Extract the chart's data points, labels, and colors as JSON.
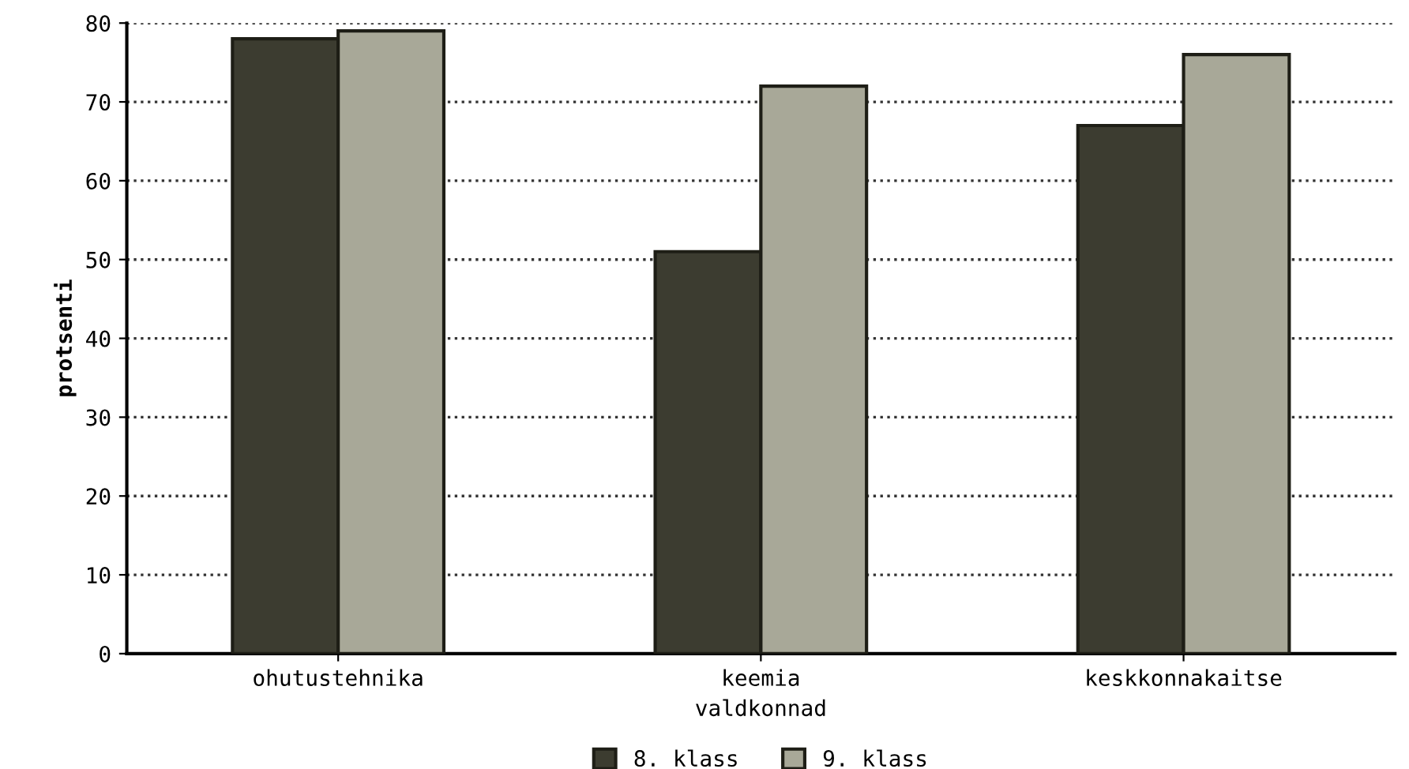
{
  "chart_data": {
    "type": "bar",
    "xlabel": "valdkonnad",
    "ylabel": "protsenti",
    "categories": [
      "ohutustehnika",
      "keemia",
      "keskkonnakaitse"
    ],
    "series": [
      {
        "name": "8. klass",
        "color": "#3c3c30",
        "values": [
          78,
          51,
          67
        ]
      },
      {
        "name": "9. klass",
        "color": "#a8a898",
        "values": [
          79,
          72,
          76
        ]
      }
    ],
    "ylim": [
      0,
      80
    ],
    "yticks": [
      0,
      10,
      20,
      30,
      40,
      50,
      60,
      70,
      80
    ],
    "grid": "y",
    "legend": "bottom"
  }
}
